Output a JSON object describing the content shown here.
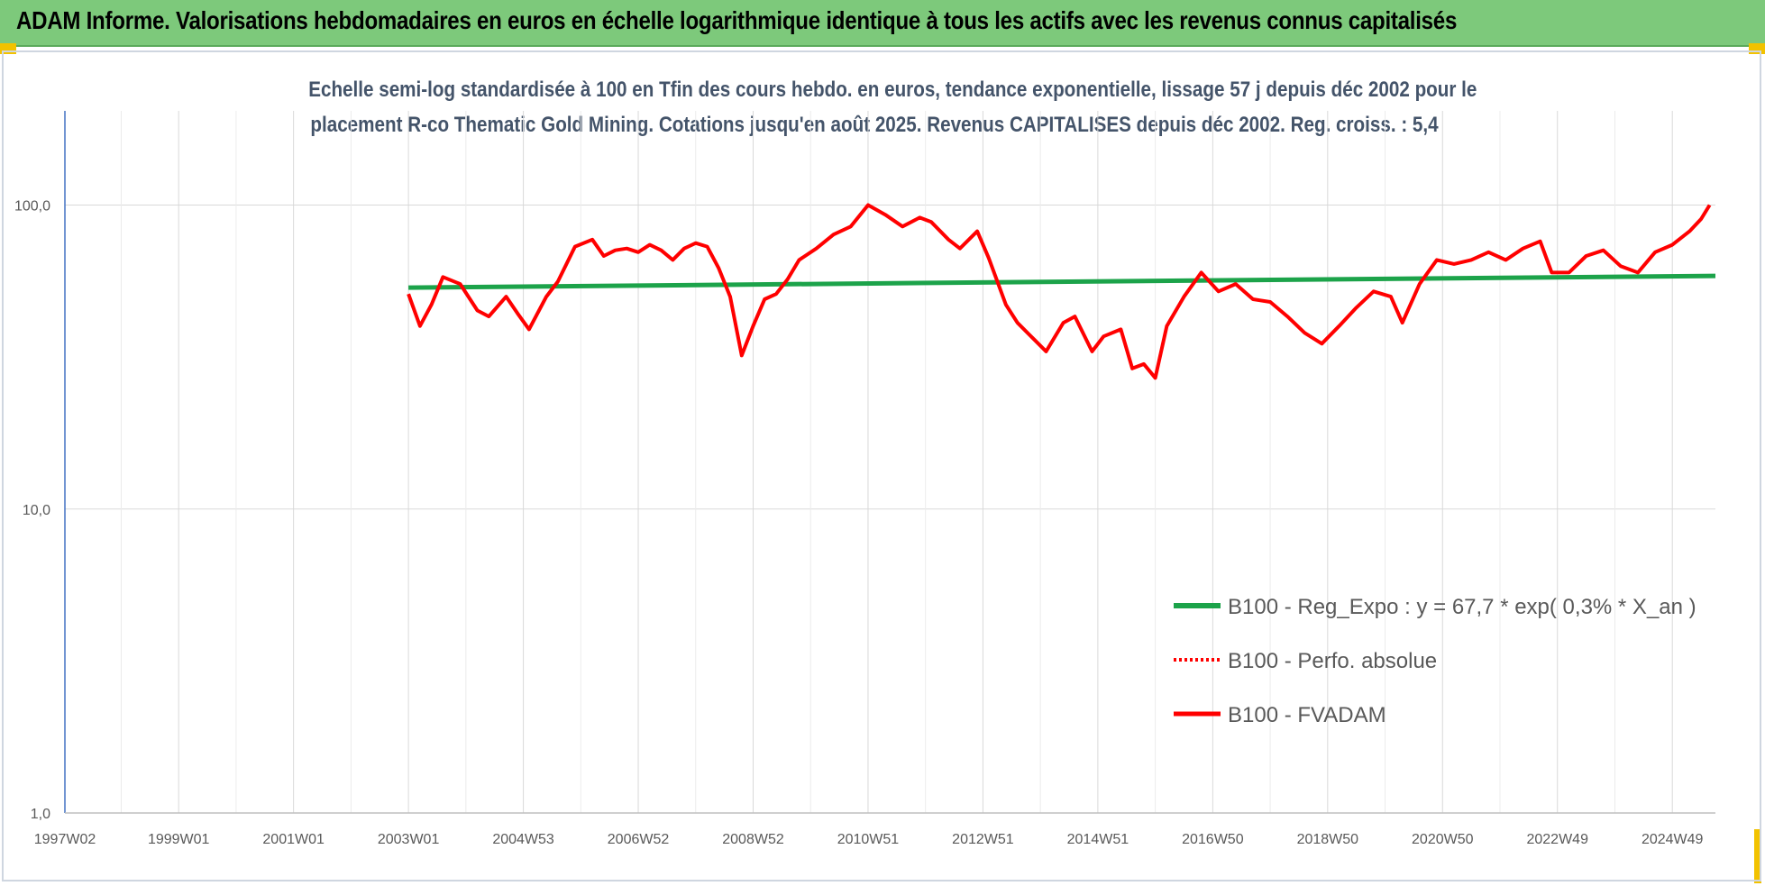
{
  "header": {
    "title": "ADAM Informe. Valorisations hebdomadaires en euros en échelle logarithmique identique à tous les actifs avec les revenus connus capitalisés"
  },
  "colors": {
    "banner": "#7dc97b",
    "trend": "#1ca34a",
    "fvadam": "#ff0000",
    "perfo": "#ff0000",
    "axis_text": "#595959",
    "subtitle": "#44546a"
  },
  "chart_data": {
    "type": "line",
    "title_line1": "Echelle semi-log standardisée à 100 en Tfin des cours hebdo. en euros, tendance exponentielle, lissage 57 j depuis déc 2002 pour le",
    "title_line2": "placement R-co Thematic Gold Mining. Cotations jusqu'en août 2025. Revenus CAPITALISES depuis déc 2002. Reg. croiss. : 5,4",
    "xlabel": "",
    "ylabel": "",
    "y_scale": "log",
    "ylim": [
      1,
      100
    ],
    "xlim": [
      1997.02,
      2025.75
    ],
    "grid": true,
    "legend_position": "right-middle",
    "x_ticks": [
      {
        "label": "1997W02",
        "x": 1997.02
      },
      {
        "label": "1999W01",
        "x": 1999.0
      },
      {
        "label": "2001W01",
        "x": 2001.0
      },
      {
        "label": "2003W01",
        "x": 2003.0
      },
      {
        "label": "2004W53",
        "x": 2005.0
      },
      {
        "label": "2006W52",
        "x": 2007.0
      },
      {
        "label": "2008W52",
        "x": 2009.0
      },
      {
        "label": "2010W51",
        "x": 2011.0
      },
      {
        "label": "2012W51",
        "x": 2013.0
      },
      {
        "label": "2014W51",
        "x": 2015.0
      },
      {
        "label": "2016W50",
        "x": 2017.0
      },
      {
        "label": "2018W50",
        "x": 2019.0
      },
      {
        "label": "2020W50",
        "x": 2021.0
      },
      {
        "label": "2022W49",
        "x": 2023.0
      },
      {
        "label": "2024W49",
        "x": 2025.0
      }
    ],
    "y_ticks": [
      {
        "label": "100,0",
        "value": 100
      },
      {
        "label": "10,0",
        "value": 10
      },
      {
        "label": "1,0",
        "value": 1
      }
    ],
    "series": [
      {
        "name": "B100 - Reg_Expo : y = 67,7 * exp( 0,3% *  X_an )",
        "style": "solid",
        "x": [
          2003.0,
          2025.75
        ],
        "values": [
          53.5,
          58.5
        ]
      },
      {
        "name": "B100 - Perfo. absolue",
        "style": "dotted",
        "x": [],
        "values": []
      },
      {
        "name": "B100 - FVADAM",
        "style": "solid",
        "x": [
          2003.0,
          2003.2,
          2003.4,
          2003.6,
          2003.9,
          2004.2,
          2004.4,
          2004.7,
          2004.9,
          2005.1,
          2005.4,
          2005.6,
          2005.9,
          2006.2,
          2006.4,
          2006.6,
          2006.8,
          2007.0,
          2007.2,
          2007.4,
          2007.6,
          2007.8,
          2008.0,
          2008.2,
          2008.4,
          2008.6,
          2008.8,
          2009.0,
          2009.2,
          2009.4,
          2009.6,
          2009.8,
          2010.1,
          2010.4,
          2010.7,
          2011.0,
          2011.3,
          2011.6,
          2011.9,
          2012.1,
          2012.4,
          2012.6,
          2012.9,
          2013.1,
          2013.4,
          2013.6,
          2013.9,
          2014.1,
          2014.4,
          2014.6,
          2014.9,
          2015.1,
          2015.4,
          2015.6,
          2015.8,
          2016.0,
          2016.2,
          2016.5,
          2016.8,
          2017.1,
          2017.4,
          2017.7,
          2018.0,
          2018.3,
          2018.6,
          2018.9,
          2019.2,
          2019.5,
          2019.8,
          2020.1,
          2020.3,
          2020.6,
          2020.9,
          2021.2,
          2021.5,
          2021.8,
          2022.1,
          2022.4,
          2022.7,
          2022.9,
          2023.2,
          2023.5,
          2023.8,
          2024.1,
          2024.4,
          2024.7,
          2025.0,
          2025.3,
          2025.5,
          2025.65
        ],
        "values": [
          51,
          40,
          47,
          58,
          55,
          45,
          43,
          50,
          44,
          39,
          50,
          56,
          73,
          77,
          68,
          71,
          72,
          70,
          74,
          71,
          66,
          72,
          75,
          73,
          62,
          50,
          32,
          40,
          49,
          51,
          57,
          66,
          72,
          80,
          85,
          100,
          93,
          85,
          91,
          88,
          77,
          72,
          82,
          67,
          47,
          41,
          36,
          33,
          41,
          43,
          33,
          37,
          39,
          29,
          30,
          27,
          40,
          50,
          60,
          52,
          55,
          49,
          48,
          43,
          38,
          35,
          40,
          46,
          52,
          50,
          41,
          55,
          66,
          64,
          66,
          70,
          66,
          72,
          76,
          60,
          60,
          68,
          71,
          63,
          60,
          70,
          74,
          82,
          90,
          100
        ]
      }
    ]
  }
}
